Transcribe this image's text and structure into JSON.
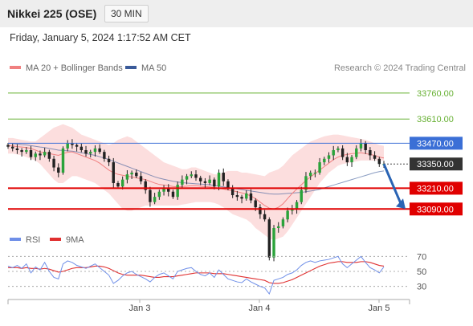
{
  "header": {
    "title": "Nikkei 225 (OSE)",
    "timeframe": "30 MIN"
  },
  "datetime": "Friday, January 5, 2024 1:17:52 AM CET",
  "research_credit": "Research © 2024 Trading Central",
  "colors": {
    "ma20": "#f08080",
    "ma50": "#3a5a99",
    "rsi": "#6f8fe8",
    "rsi_ma": "#e03030",
    "support": "#e00000",
    "pivot": "#3b6fd6",
    "resistance": "#66b032",
    "current": "#333333",
    "arrow": "#2a64b4"
  },
  "chart_data": [
    {
      "type": "candlestick",
      "x_ticks": [
        "Jan 3",
        "Jan 4",
        "Jan 5"
      ],
      "ylim": [
        32980,
        33880
      ],
      "legend": [
        {
          "name": "MA 20 + Bollinger Bands",
          "color": "#f08080"
        },
        {
          "name": "MA 50",
          "color": "#3a5a99"
        }
      ],
      "legend_position": "top-left",
      "levels": [
        {
          "value": 33760,
          "label": "33760.00",
          "kind": "resistance"
        },
        {
          "value": 33610,
          "label": "33610.00",
          "kind": "resistance"
        },
        {
          "value": 33470,
          "label": "33470.00",
          "kind": "pivot"
        },
        {
          "value": 33350,
          "label": "33350.00",
          "kind": "current"
        },
        {
          "value": 33210,
          "label": "33210.00",
          "kind": "support"
        },
        {
          "value": 33090,
          "label": "33090.00",
          "kind": "support"
        }
      ],
      "close_path": [
        33450,
        33440,
        33430,
        33420,
        33430,
        33390,
        33410,
        33400,
        33420,
        33380,
        33330,
        33300,
        33440,
        33470,
        33460,
        33450,
        33430,
        33410,
        33420,
        33440,
        33420,
        33380,
        33360,
        33240,
        33220,
        33260,
        33290,
        33300,
        33280,
        33250,
        33200,
        33130,
        33160,
        33190,
        33210,
        33190,
        33160,
        33230,
        33260,
        33280,
        33290,
        33270,
        33250,
        33240,
        33260,
        33220,
        33300,
        33250,
        33210,
        33170,
        33160,
        33150,
        33180,
        33140,
        33100,
        33060,
        33030,
        32810,
        32980,
        32990,
        33030,
        33080,
        33090,
        33130,
        33200,
        33280,
        33300,
        33300,
        33360,
        33380,
        33400,
        33430,
        33440,
        33390,
        33360,
        33390,
        33440,
        33470,
        33430,
        33400,
        33380,
        33350,
        33350
      ],
      "ma20_path": [
        33455,
        33455,
        33450,
        33448,
        33445,
        33440,
        33430,
        33420,
        33415,
        33410,
        33405,
        33400,
        33410,
        33418,
        33420,
        33410,
        33400,
        33390,
        33380,
        33370,
        33355,
        33335,
        33315,
        33300,
        33290,
        33285,
        33280,
        33275,
        33270,
        33265,
        33260,
        33250,
        33240,
        33232,
        33228,
        33225,
        33220,
        33218,
        33220,
        33222,
        33225,
        33225,
        33222,
        33220,
        33218,
        33215,
        33210,
        33205,
        33200,
        33195,
        33190,
        33183,
        33176,
        33165,
        33150,
        33130,
        33110,
        33095,
        33090,
        33100,
        33120,
        33150,
        33180,
        33205,
        33230,
        33255,
        33275,
        33295,
        33315,
        33335,
        33355,
        33375,
        33390,
        33400,
        33405,
        33410,
        33412,
        33415,
        33410,
        33405,
        33400,
        33390,
        33385
      ],
      "bb_upper": [
        33500,
        33500,
        33495,
        33490,
        33485,
        33480,
        33480,
        33500,
        33520,
        33540,
        33560,
        33570,
        33580,
        33570,
        33560,
        33540,
        33520,
        33510,
        33500,
        33490,
        33480,
        33470,
        33460,
        33470,
        33490,
        33500,
        33510,
        33500,
        33480,
        33460,
        33440,
        33420,
        33400,
        33380,
        33360,
        33350,
        33340,
        33330,
        33320,
        33320,
        33330,
        33330,
        33320,
        33310,
        33300,
        33290,
        33290,
        33300,
        33310,
        33310,
        33310,
        33300,
        33300,
        33295,
        33290,
        33285,
        33280,
        33300,
        33310,
        33320,
        33340,
        33370,
        33400,
        33420,
        33440,
        33460,
        33480,
        33490,
        33500,
        33510,
        33515,
        33520,
        33520,
        33515,
        33510,
        33505,
        33500,
        33495,
        33490,
        33480,
        33470,
        33460,
        33455
      ],
      "bb_lower": [
        33410,
        33410,
        33405,
        33400,
        33390,
        33380,
        33370,
        33350,
        33320,
        33290,
        33260,
        33240,
        33240,
        33260,
        33280,
        33280,
        33270,
        33260,
        33250,
        33240,
        33220,
        33200,
        33180,
        33150,
        33120,
        33090,
        33080,
        33080,
        33090,
        33100,
        33110,
        33110,
        33110,
        33110,
        33110,
        33110,
        33110,
        33110,
        33115,
        33120,
        33125,
        33130,
        33130,
        33130,
        33130,
        33125,
        33115,
        33100,
        33080,
        33060,
        33050,
        33040,
        33030,
        33010,
        32980,
        32960,
        32940,
        32920,
        32910,
        32920,
        32930,
        32960,
        33000,
        33040,
        33080,
        33120,
        33160,
        33200,
        33240,
        33270,
        33300,
        33320,
        33340,
        33350,
        33355,
        33360,
        33365,
        33370,
        33370,
        33370,
        33370,
        33370,
        33370
      ],
      "ma50_path": [
        33470,
        33468,
        33465,
        33462,
        33460,
        33456,
        33452,
        33448,
        33445,
        33440,
        33435,
        33430,
        33428,
        33426,
        33424,
        33420,
        33415,
        33410,
        33405,
        33400,
        33392,
        33384,
        33376,
        33366,
        33356,
        33346,
        33336,
        33326,
        33316,
        33306,
        33296,
        33286,
        33276,
        33268,
        33262,
        33256,
        33250,
        33246,
        33242,
        33240,
        33238,
        33236,
        33234,
        33232,
        33230,
        33226,
        33222,
        33218,
        33214,
        33210,
        33206,
        33202,
        33198,
        33194,
        33190,
        33186,
        33182,
        33178,
        33176,
        33176,
        33178,
        33180,
        33182,
        33184,
        33186,
        33190,
        33194,
        33198,
        33204,
        33212,
        33220,
        33228,
        33236,
        33244,
        33252,
        33260,
        33268,
        33276,
        33284,
        33292,
        33300,
        33306,
        33310
      ]
    },
    {
      "type": "line",
      "legend": [
        {
          "name": "RSI",
          "color": "#6f8fe8"
        },
        {
          "name": "9MA",
          "color": "#e03030"
        }
      ],
      "ylim": [
        20,
        80
      ],
      "y_ticks": [
        70,
        50,
        30
      ],
      "x_ticks": [
        "Jan 3",
        "Jan 4",
        "Jan 5"
      ],
      "series": [
        {
          "name": "RSI",
          "values": [
            57,
            55,
            58,
            54,
            60,
            48,
            56,
            52,
            62,
            50,
            42,
            40,
            60,
            64,
            62,
            58,
            56,
            54,
            57,
            60,
            55,
            50,
            45,
            34,
            38,
            44,
            48,
            50,
            46,
            43,
            40,
            36,
            42,
            46,
            48,
            44,
            40,
            50,
            52,
            54,
            55,
            50,
            46,
            44,
            48,
            42,
            52,
            46,
            40,
            38,
            36,
            35,
            40,
            36,
            33,
            30,
            28,
            20,
            38,
            40,
            42,
            46,
            48,
            52,
            58,
            62,
            64,
            62,
            64,
            65,
            66,
            68,
            70,
            60,
            55,
            60,
            65,
            70,
            62,
            55,
            52,
            48,
            56
          ]
        },
        {
          "name": "9MA",
          "values": [
            55,
            55,
            55,
            54,
            55,
            54,
            54,
            53,
            54,
            53,
            51,
            49,
            50,
            52,
            54,
            55,
            55,
            55,
            56,
            57,
            57,
            56,
            54,
            51,
            48,
            46,
            45,
            45,
            45,
            45,
            44,
            43,
            42,
            42,
            43,
            43,
            43,
            44,
            45,
            46,
            47,
            48,
            48,
            48,
            48,
            47,
            47,
            47,
            46,
            45,
            44,
            43,
            42,
            41,
            40,
            39,
            38,
            35,
            34,
            34,
            35,
            37,
            39,
            42,
            45,
            48,
            51,
            54,
            57,
            59,
            61,
            62,
            63,
            63,
            62,
            62,
            62,
            63,
            63,
            62,
            60,
            58,
            57
          ]
        }
      ]
    }
  ]
}
